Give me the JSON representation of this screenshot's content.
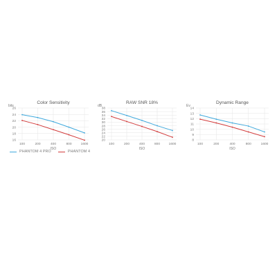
{
  "chart_data": [
    {
      "type": "line",
      "title": "Color Sensitivity",
      "unit": "bits",
      "xlabel": "ISO",
      "categories": [
        "100",
        "200",
        "400",
        "800",
        "1600"
      ],
      "yticks": [
        16,
        18,
        20,
        22,
        24,
        26
      ],
      "ylim": [
        16,
        26
      ],
      "grid": true,
      "series": [
        {
          "name": "PHANTOM 4 PRO",
          "color": "#3fa9dd",
          "values": [
            23.9,
            23.0,
            21.7,
            20.0,
            18.2
          ]
        },
        {
          "name": "PHANTOM 4",
          "color": "#d23b3b",
          "values": [
            22.1,
            20.8,
            19.2,
            17.6,
            15.9
          ]
        }
      ]
    },
    {
      "type": "line",
      "title": "RAW SNR 18%",
      "unit": "dB",
      "xlabel": "ISO",
      "categories": [
        "100",
        "200",
        "400",
        "800",
        "1600"
      ],
      "yticks": [
        20,
        22,
        24,
        26,
        28,
        30,
        32,
        34,
        36,
        38
      ],
      "ylim": [
        20,
        38
      ],
      "grid": true,
      "series": [
        {
          "name": "PHANTOM 4 PRO",
          "color": "#3fa9dd",
          "values": [
            36.5,
            33.8,
            31.0,
            28.0,
            25.3
          ]
        },
        {
          "name": "PHANTOM 4",
          "color": "#d23b3b",
          "values": [
            33.2,
            30.4,
            27.6,
            24.7,
            21.5
          ]
        }
      ]
    },
    {
      "type": "line",
      "title": "Dynamic Range",
      "unit": "Ev",
      "xlabel": "ISO",
      "categories": [
        "100",
        "200",
        "400",
        "800",
        "1600"
      ],
      "yticks": [
        8,
        9,
        10,
        11,
        12,
        13,
        14
      ],
      "ylim": [
        8,
        14
      ],
      "grid": true,
      "series": [
        {
          "name": "PHANTOM 4 PRO",
          "color": "#3fa9dd",
          "values": [
            12.7,
            11.9,
            11.2,
            10.6,
            9.5
          ]
        },
        {
          "name": "PHANTOM 4",
          "color": "#d23b3b",
          "values": [
            11.9,
            11.2,
            10.4,
            9.5,
            8.6
          ]
        }
      ]
    }
  ],
  "legend": [
    {
      "label": "PHANTOM 4 PRO",
      "color": "#3fa9dd"
    },
    {
      "label": "PHANTOM 4",
      "color": "#d23b3b"
    }
  ]
}
